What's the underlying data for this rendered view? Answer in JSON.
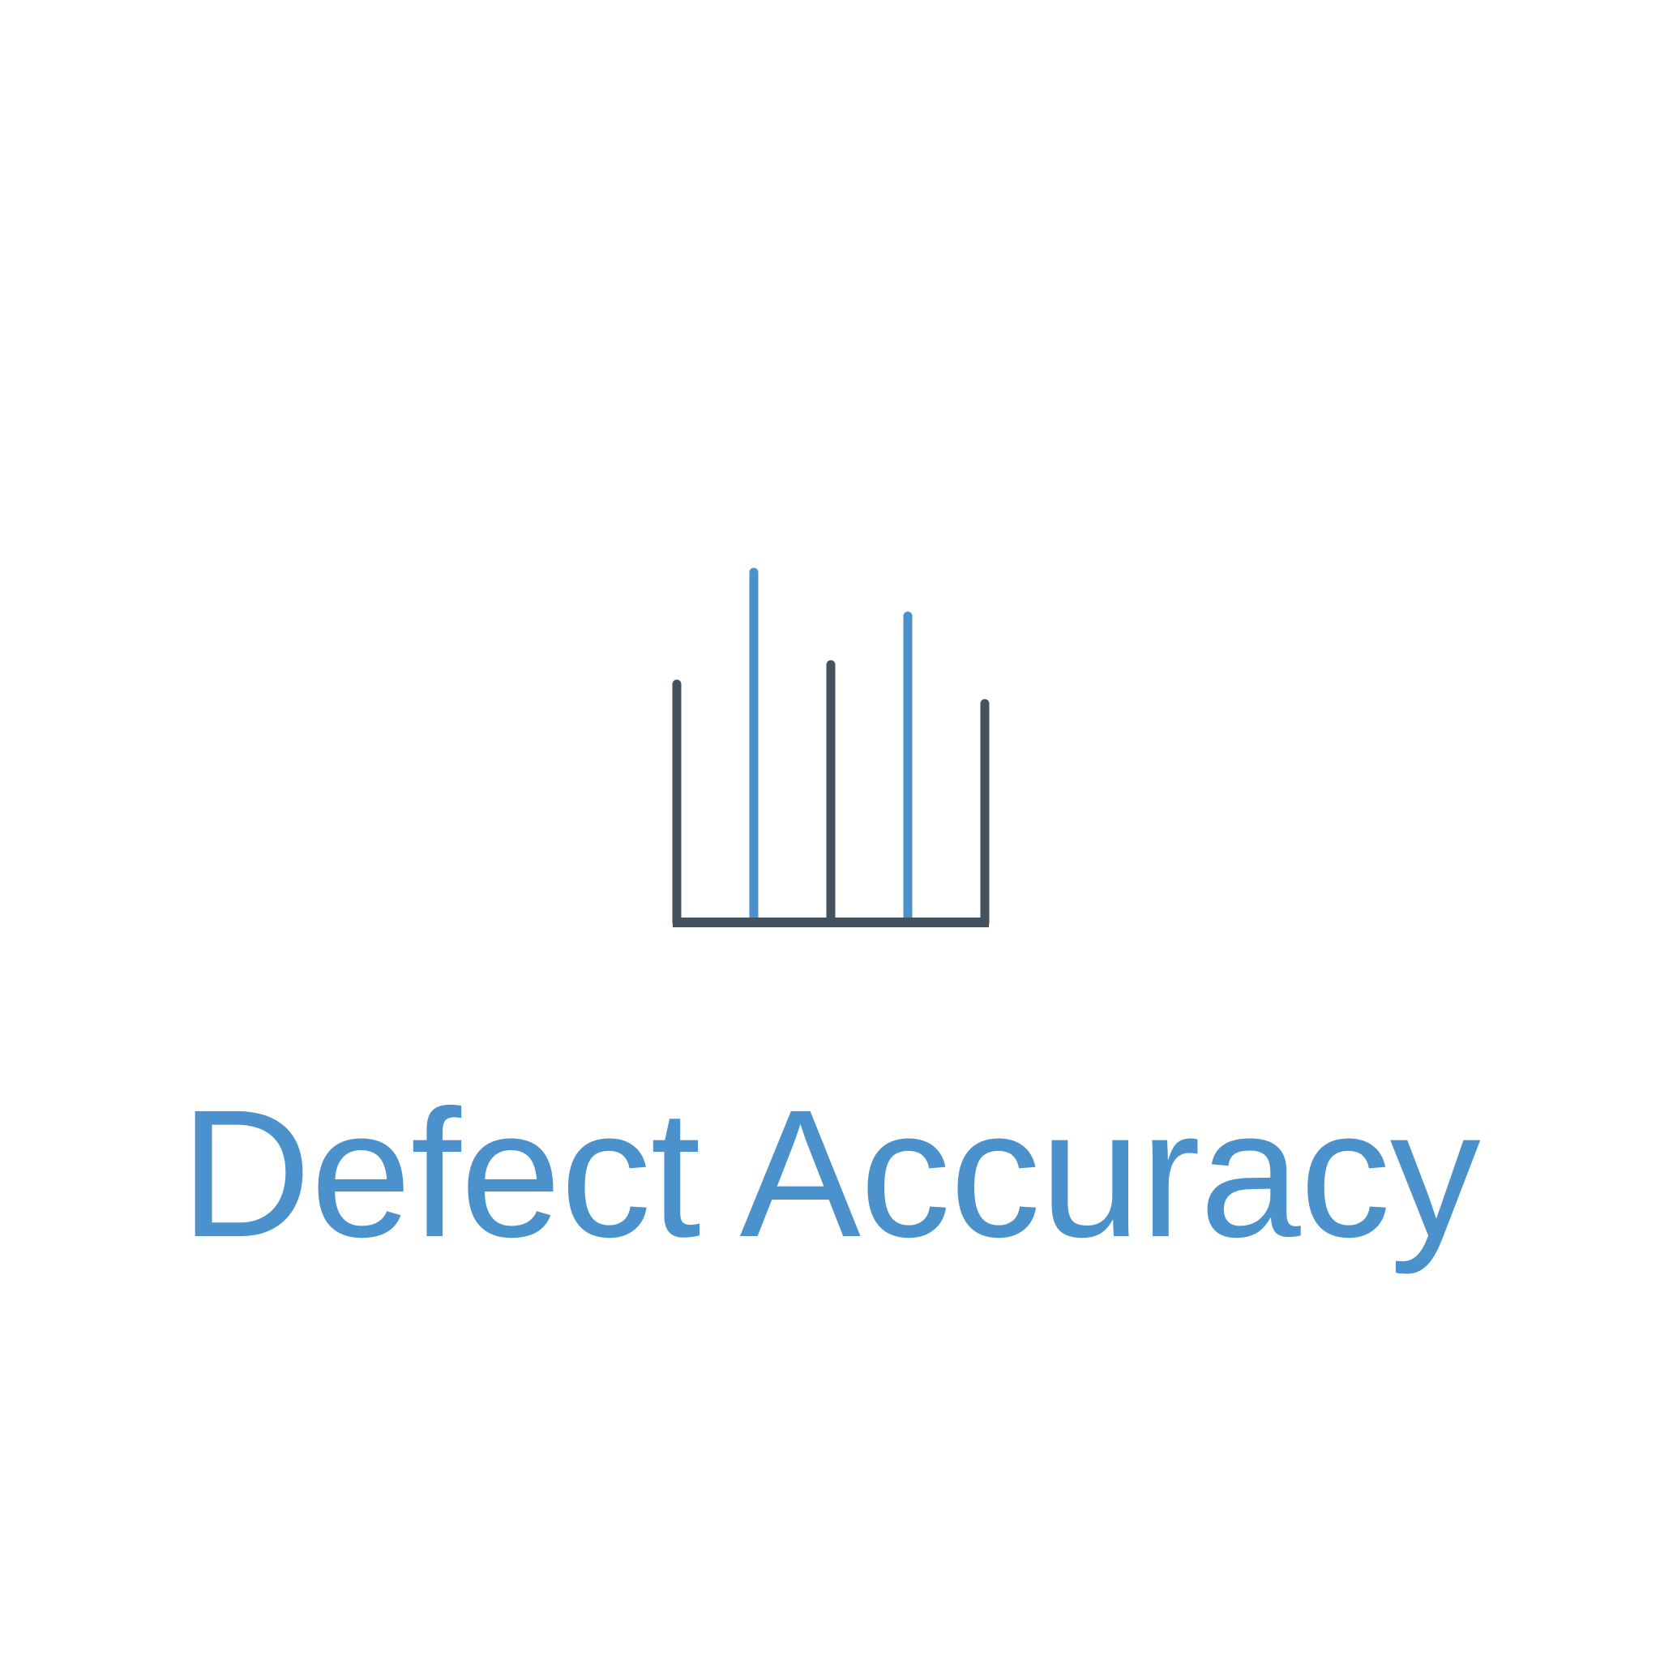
{
  "logo": {
    "icon_name": "bar-chart-icon",
    "bar_levels": [
      0.49,
      0.72,
      0.53,
      0.63,
      0.45
    ],
    "bar_colors": [
      "#44525e",
      "#4b92cd",
      "#44525e",
      "#4b92cd",
      "#44525e"
    ],
    "base_color": "#44525e"
  },
  "title": {
    "text": "Defect Accuracy",
    "color": "#4b92cd"
  }
}
